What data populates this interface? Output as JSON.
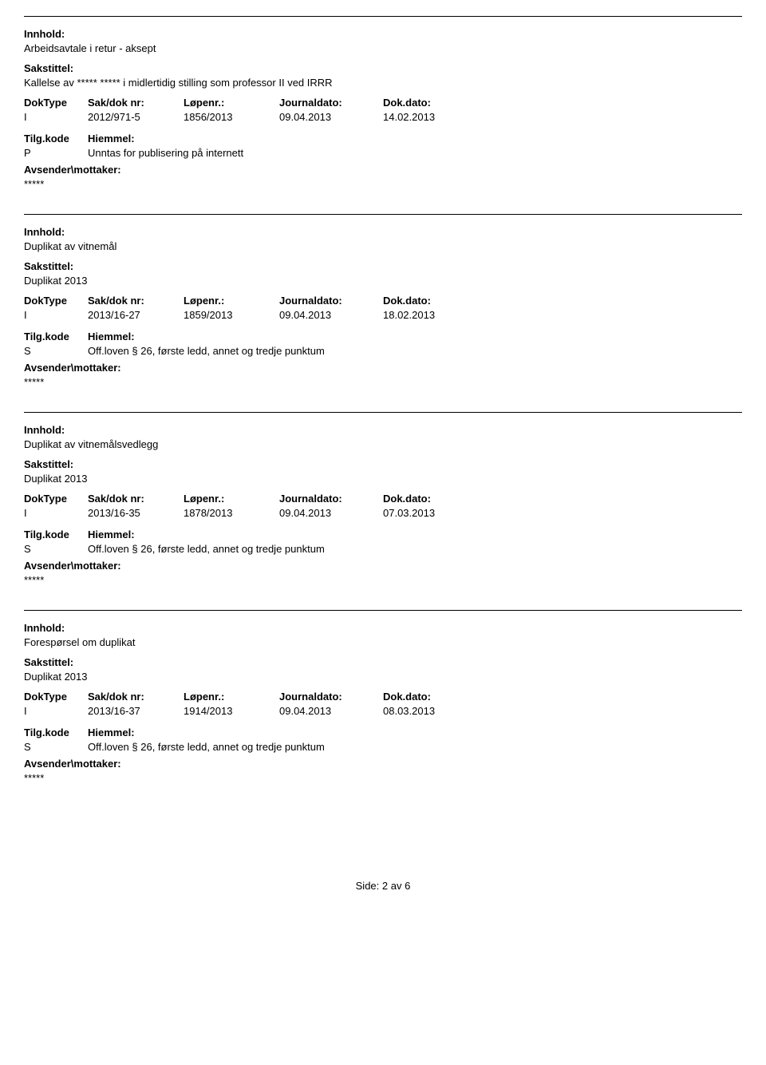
{
  "labels": {
    "innhold": "Innhold:",
    "sakstittel": "Sakstittel:",
    "doktype": "DokType",
    "saknr": "Sak/dok nr:",
    "lopenr": "Løpenr.:",
    "journaldato": "Journaldato:",
    "dokdato": "Dok.dato:",
    "tilgkode": "Tilg.kode",
    "hiemmel": "Hiemmel:",
    "avsender": "Avsender\\mottaker:"
  },
  "entries": [
    {
      "innhold": "Arbeidsavtale i retur - aksept",
      "sakstittel": "Kallelse av ***** ***** i midlertidig stilling som professor II ved IRRR",
      "doktype": "I",
      "saknr": "2012/971-5",
      "lopenr": "1856/2013",
      "journaldato": "09.04.2013",
      "dokdato": "14.02.2013",
      "tilgkode": "P",
      "hiemmel": "Unntas for publisering på internett",
      "avsender_val": "*****"
    },
    {
      "innhold": "Duplikat av vitnemål",
      "sakstittel": "Duplikat 2013",
      "doktype": "I",
      "saknr": "2013/16-27",
      "lopenr": "1859/2013",
      "journaldato": "09.04.2013",
      "dokdato": "18.02.2013",
      "tilgkode": "S",
      "hiemmel": "Off.loven § 26, første ledd, annet og tredje punktum",
      "avsender_val": "*****"
    },
    {
      "innhold": "Duplikat av vitnemålsvedlegg",
      "sakstittel": "Duplikat 2013",
      "doktype": "I",
      "saknr": "2013/16-35",
      "lopenr": "1878/2013",
      "journaldato": "09.04.2013",
      "dokdato": "07.03.2013",
      "tilgkode": "S",
      "hiemmel": "Off.loven § 26, første ledd, annet og tredje punktum",
      "avsender_val": "*****"
    },
    {
      "innhold": "Forespørsel om duplikat",
      "sakstittel": "Duplikat 2013",
      "doktype": "I",
      "saknr": "2013/16-37",
      "lopenr": "1914/2013",
      "journaldato": "09.04.2013",
      "dokdato": "08.03.2013",
      "tilgkode": "S",
      "hiemmel": "Off.loven § 26, første ledd, annet og tredje punktum",
      "avsender_val": "*****"
    }
  ],
  "footer": {
    "prefix": "Side:",
    "current": "2",
    "sep": "av",
    "total": "6"
  }
}
